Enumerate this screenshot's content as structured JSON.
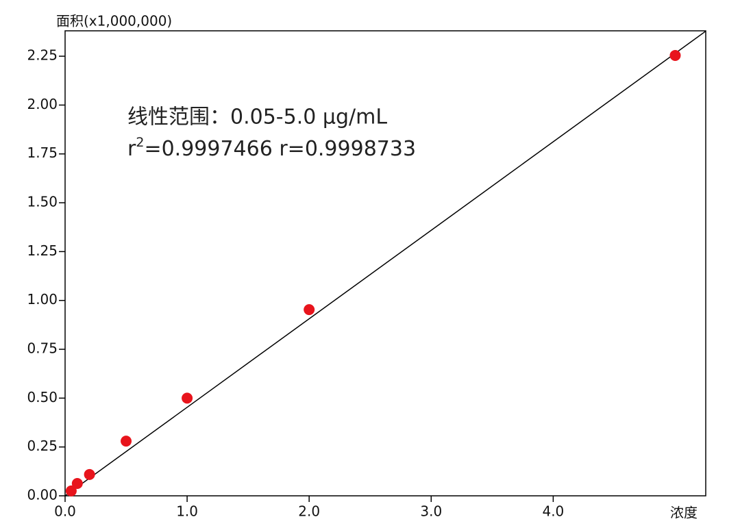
{
  "chart_data": {
    "type": "scatter",
    "y_label": "面积(x1,000,000)",
    "x_label": "浓度",
    "annotation": {
      "line1": "线性范围：0.05-5.0 μg/mL",
      "line2_start": "r",
      "line2_sup": "2",
      "line2_rest": "=0.9997466  r=0.9998733"
    },
    "x": [
      0.05,
      0.1,
      0.2,
      0.5,
      1.0,
      2.0,
      5.0
    ],
    "series": [
      {
        "color": "#e8141c",
        "values": [
          0.025,
          0.063,
          0.109,
          0.28,
          0.5,
          0.953,
          2.254
        ]
      }
    ],
    "fit": {
      "slope": 0.453,
      "intercept": 0.0,
      "color": "#000000"
    },
    "xlim": [
      0,
      5.25
    ],
    "ylim": [
      0,
      2.38
    ],
    "xticks": [
      {
        "value": 0,
        "label": "0.0"
      },
      {
        "value": 1,
        "label": "1.0"
      },
      {
        "value": 2,
        "label": "2.0"
      },
      {
        "value": 3,
        "label": "3.0"
      },
      {
        "value": 4,
        "label": "4.0"
      }
    ],
    "yticks": [
      {
        "value": 0,
        "label": "0.00"
      },
      {
        "value": 0.25,
        "label": "0.25"
      },
      {
        "value": 0.5,
        "label": "0.50"
      },
      {
        "value": 0.75,
        "label": "0.75"
      },
      {
        "value": 1,
        "label": "1.00"
      },
      {
        "value": 1.25,
        "label": "1.25"
      },
      {
        "value": 1.5,
        "label": "1.50"
      },
      {
        "value": 1.75,
        "label": "1.75"
      },
      {
        "value": 2,
        "label": "2.00"
      },
      {
        "value": 2.25,
        "label": "2.25"
      }
    ]
  }
}
